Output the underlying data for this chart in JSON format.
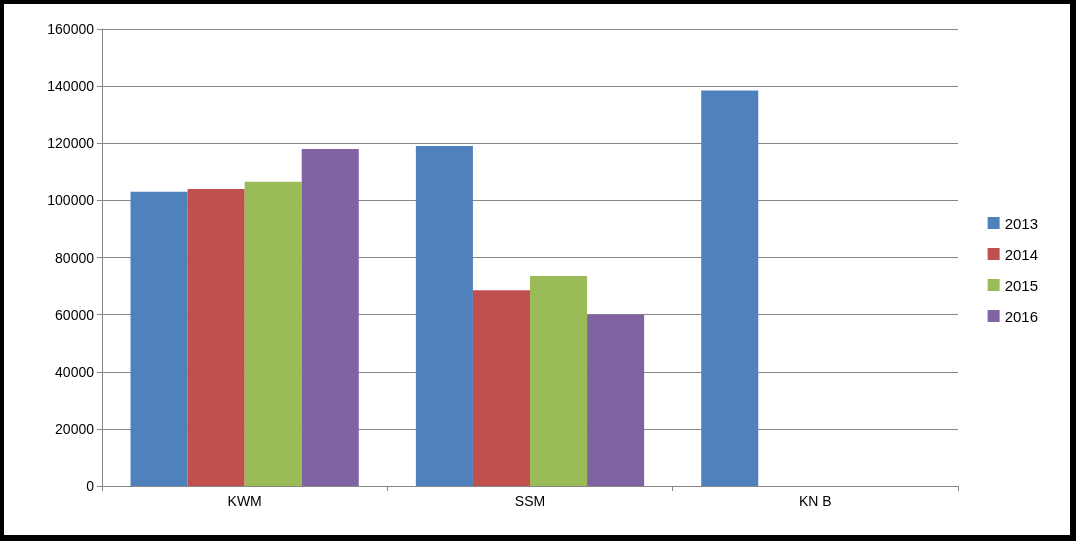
{
  "chart_data": {
    "type": "bar",
    "categories": [
      "KWM",
      "SSM",
      "KN B"
    ],
    "series": [
      {
        "name": "2013",
        "color": "#4f81bd",
        "values": [
          103000,
          119000,
          138500
        ]
      },
      {
        "name": "2014",
        "color": "#c0504d",
        "values": [
          104000,
          68500,
          null
        ]
      },
      {
        "name": "2015",
        "color": "#9bbb59",
        "values": [
          106500,
          73500,
          null
        ]
      },
      {
        "name": "2016",
        "color": "#8064a2",
        "values": [
          118000,
          60000,
          null
        ]
      }
    ],
    "ylim": [
      0,
      160000
    ],
    "yticks": [
      0,
      20000,
      40000,
      60000,
      80000,
      100000,
      120000,
      140000,
      160000
    ],
    "grid": "y",
    "legend": "right"
  }
}
